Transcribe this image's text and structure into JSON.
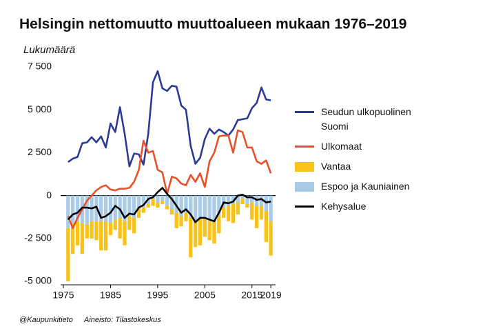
{
  "chart_data": {
    "type": "combo",
    "title": "Helsingin nettomuutto muuttoalueen mukaan 1976–2019",
    "y_label": "Lukumäärä",
    "source": [
      "@Kaupunkitieto",
      "Aineisto: Tilastokeskus"
    ],
    "x": [
      1976,
      1977,
      1978,
      1979,
      1980,
      1981,
      1982,
      1983,
      1984,
      1985,
      1986,
      1987,
      1988,
      1989,
      1990,
      1991,
      1992,
      1993,
      1994,
      1995,
      1996,
      1997,
      1998,
      1999,
      2000,
      2001,
      2002,
      2003,
      2004,
      2005,
      2006,
      2007,
      2008,
      2009,
      2010,
      2011,
      2012,
      2013,
      2014,
      2015,
      2016,
      2017,
      2018,
      2019
    ],
    "xlim": [
      1975,
      2020
    ],
    "xticks": [
      1975,
      1985,
      1995,
      2005,
      2015,
      2019
    ],
    "ylim": [
      -5000,
      7500
    ],
    "yticks": [
      {
        "value": -5000,
        "label": "-5 000"
      },
      {
        "value": -2500,
        "label": "-2 500"
      },
      0,
      {
        "value": 2500,
        "label": "2 500"
      },
      {
        "value": 5000,
        "label": "5 000"
      },
      {
        "value": 7500,
        "label": "7 500"
      }
    ],
    "series": [
      {
        "name": "Seudun ulkopuolinen Suomi",
        "type": "line",
        "color": "#2b3a97",
        "values": [
          1950,
          2150,
          2250,
          3050,
          3100,
          3400,
          3100,
          3450,
          2800,
          4200,
          3700,
          5150,
          3600,
          1700,
          2450,
          2400,
          1800,
          3600,
          6600,
          7250,
          6250,
          6100,
          6400,
          6350,
          5250,
          5000,
          2900,
          1850,
          2200,
          3300,
          3900,
          3600,
          3850,
          3700,
          3500,
          3850,
          4400,
          4450,
          4500,
          5100,
          5400,
          6300,
          5600,
          5550
        ]
      },
      {
        "name": "Ulkomaat",
        "type": "line",
        "color": "#e8502a",
        "values": [
          -1200,
          -1900,
          -1300,
          -800,
          -300,
          0,
          300,
          500,
          600,
          350,
          300,
          400,
          400,
          450,
          800,
          1500,
          3200,
          2500,
          2600,
          1500,
          1350,
          100,
          1100,
          1000,
          700,
          600,
          1200,
          800,
          1300,
          500,
          2000,
          2500,
          3450,
          3500,
          3500,
          2500,
          3800,
          3700,
          2800,
          2800,
          2000,
          1850,
          2050,
          1300
        ]
      },
      {
        "name": "Vantaa",
        "type": "bar",
        "color": "#f7c31a",
        "values": [
          -3100,
          -1800,
          -1400,
          -1800,
          -800,
          -1000,
          -1100,
          -1700,
          -1700,
          -700,
          -600,
          -1200,
          -1400,
          -800,
          -900,
          -500,
          -300,
          -200,
          -400,
          -300,
          -200,
          -200,
          -300,
          -900,
          -600,
          -500,
          -2300,
          -1500,
          -1600,
          -1100,
          -1100,
          -1300,
          -1000,
          -600,
          -900,
          -1100,
          -700,
          -300,
          -200,
          -1000,
          -1300,
          -800,
          -1800,
          -2000
        ]
      },
      {
        "name": "Espoo ja Kauniainen",
        "type": "bar",
        "color": "#a9cbea",
        "values": [
          -1900,
          -1600,
          -1500,
          -1600,
          -1700,
          -1500,
          -1500,
          -1500,
          -1500,
          -1600,
          -1400,
          -1300,
          -1500,
          -1200,
          -1300,
          -800,
          -700,
          -500,
          -200,
          -400,
          -300,
          -600,
          -800,
          -1000,
          -1200,
          -1000,
          -1300,
          -1500,
          -1300,
          -1300,
          -1500,
          -1500,
          -1200,
          -700,
          -600,
          -500,
          -400,
          -200,
          -500,
          -400,
          -600,
          -600,
          -900,
          -1500
        ]
      },
      {
        "name": "Kehysalue",
        "type": "line",
        "color": "#000000",
        "values": [
          -1400,
          -1100,
          -1000,
          -700,
          -700,
          -750,
          -650,
          -1300,
          -1200,
          -1000,
          -600,
          -800,
          -1300,
          -1050,
          -1100,
          -700,
          -550,
          -200,
          -100,
          200,
          450,
          100,
          -200,
          -600,
          -1000,
          -800,
          -1100,
          -1550,
          -1300,
          -1300,
          -1400,
          -1500,
          -1000,
          -400,
          -450,
          -350,
          0,
          50,
          -100,
          -100,
          -250,
          -200,
          -400,
          -350
        ]
      }
    ]
  }
}
